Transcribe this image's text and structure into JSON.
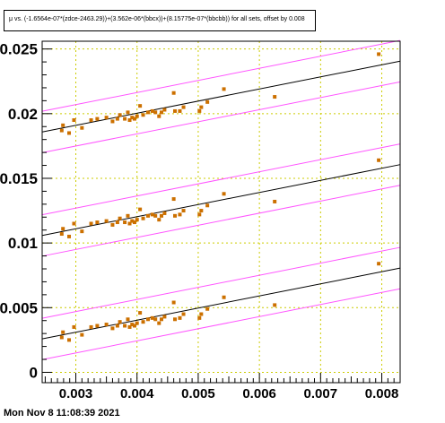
{
  "chart_data": {
    "type": "scatter",
    "title": "μ vs. (-1.6564e-07*(zdce-2463.29))+(3.562e-06*(bbcx))+(8.15775e-07*(bbcbb)) for all sets, offset by 0.008",
    "xlabel": "",
    "ylabel": "",
    "xlim": [
      0.00245,
      0.0083
    ],
    "ylim": [
      -0.0008,
      0.0256
    ],
    "x_ticks": [
      "0.003",
      "0.004",
      "0.005",
      "0.006",
      "0.007",
      "0.008"
    ],
    "x_tick_values": [
      0.003,
      0.004,
      0.005,
      0.006,
      0.007,
      0.008
    ],
    "y_ticks": [
      "0",
      "0.005",
      "0.01",
      "0.015",
      "0.02",
      "0.025"
    ],
    "y_tick_values": [
      0,
      0.005,
      0.01,
      0.015,
      0.02,
      0.025
    ],
    "grid": true,
    "offset": 0.008,
    "colors": {
      "points": "#cc7000",
      "fit": "#000000",
      "band": "#ff55ff",
      "grid": "#cccc00",
      "frame": "#000000"
    },
    "series": [
      {
        "offset_index": 0,
        "fit": {
          "slope": 0.936,
          "intercept": 0.00029
        },
        "band_halfwidth": 0.0016,
        "points": [
          [
            0.00277,
            0.0027
          ],
          [
            0.00279,
            0.0031
          ],
          [
            0.00289,
            0.0025
          ],
          [
            0.00297,
            0.0035
          ],
          [
            0.0031,
            0.0029
          ],
          [
            0.00325,
            0.0035
          ],
          [
            0.00335,
            0.0036
          ],
          [
            0.0035,
            0.0037
          ],
          [
            0.0036,
            0.0034
          ],
          [
            0.00368,
            0.0036
          ],
          [
            0.00372,
            0.0039
          ],
          [
            0.0038,
            0.0036
          ],
          [
            0.00385,
            0.0041
          ],
          [
            0.00388,
            0.0035
          ],
          [
            0.00392,
            0.0037
          ],
          [
            0.00396,
            0.0036
          ],
          [
            0.004,
            0.0038
          ],
          [
            0.00405,
            0.0046
          ],
          [
            0.0041,
            0.0039
          ],
          [
            0.00418,
            0.0041
          ],
          [
            0.00425,
            0.0042
          ],
          [
            0.0043,
            0.0041
          ],
          [
            0.00436,
            0.0038
          ],
          [
            0.0044,
            0.0041
          ],
          [
            0.00445,
            0.0043
          ],
          [
            0.0046,
            0.0054
          ],
          [
            0.00462,
            0.0041
          ],
          [
            0.0047,
            0.0042
          ],
          [
            0.00476,
            0.0045
          ],
          [
            0.00502,
            0.0042
          ],
          [
            0.00505,
            0.0045
          ],
          [
            0.00515,
            0.0049
          ],
          [
            0.00542,
            0.0058
          ],
          [
            0.00625,
            0.0052
          ],
          [
            0.00795,
            0.0084
          ]
        ]
      },
      {
        "offset_index": 1,
        "fit": {
          "slope": 0.936,
          "intercept": 0.00829
        },
        "band_halfwidth": 0.0016,
        "points": [
          [
            0.00277,
            0.0107
          ],
          [
            0.00279,
            0.0111
          ],
          [
            0.00289,
            0.0105
          ],
          [
            0.00297,
            0.0115
          ],
          [
            0.0031,
            0.0109
          ],
          [
            0.00325,
            0.0115
          ],
          [
            0.00335,
            0.0116
          ],
          [
            0.0035,
            0.0117
          ],
          [
            0.0036,
            0.0114
          ],
          [
            0.00368,
            0.0116
          ],
          [
            0.00372,
            0.0119
          ],
          [
            0.0038,
            0.0116
          ],
          [
            0.00385,
            0.0121
          ],
          [
            0.00388,
            0.0115
          ],
          [
            0.00392,
            0.0117
          ],
          [
            0.00396,
            0.0116
          ],
          [
            0.004,
            0.0118
          ],
          [
            0.00405,
            0.0126
          ],
          [
            0.0041,
            0.0119
          ],
          [
            0.00418,
            0.0121
          ],
          [
            0.00425,
            0.0122
          ],
          [
            0.0043,
            0.0121
          ],
          [
            0.00436,
            0.0118
          ],
          [
            0.0044,
            0.0121
          ],
          [
            0.00445,
            0.0123
          ],
          [
            0.0046,
            0.0134
          ],
          [
            0.00462,
            0.0121
          ],
          [
            0.0047,
            0.0122
          ],
          [
            0.00476,
            0.0125
          ],
          [
            0.00502,
            0.0122
          ],
          [
            0.00505,
            0.0125
          ],
          [
            0.00515,
            0.0129
          ],
          [
            0.00542,
            0.0138
          ],
          [
            0.00625,
            0.0132
          ],
          [
            0.00795,
            0.0164
          ]
        ]
      },
      {
        "offset_index": 2,
        "fit": {
          "slope": 0.936,
          "intercept": 0.01629
        },
        "band_halfwidth": 0.0016,
        "points": [
          [
            0.00277,
            0.0187
          ],
          [
            0.00279,
            0.0191
          ],
          [
            0.00289,
            0.0185
          ],
          [
            0.00297,
            0.0195
          ],
          [
            0.0031,
            0.0189
          ],
          [
            0.00325,
            0.0195
          ],
          [
            0.00335,
            0.0196
          ],
          [
            0.0035,
            0.0197
          ],
          [
            0.0036,
            0.0194
          ],
          [
            0.00368,
            0.0196
          ],
          [
            0.00372,
            0.0199
          ],
          [
            0.0038,
            0.0196
          ],
          [
            0.00385,
            0.0201
          ],
          [
            0.00388,
            0.0195
          ],
          [
            0.00392,
            0.0197
          ],
          [
            0.00396,
            0.0196
          ],
          [
            0.004,
            0.0198
          ],
          [
            0.00405,
            0.0206
          ],
          [
            0.0041,
            0.0199
          ],
          [
            0.00418,
            0.0201
          ],
          [
            0.00425,
            0.0202
          ],
          [
            0.0043,
            0.0201
          ],
          [
            0.00436,
            0.0198
          ],
          [
            0.0044,
            0.0201
          ],
          [
            0.00445,
            0.0203
          ],
          [
            0.0046,
            0.0216
          ],
          [
            0.00462,
            0.0202
          ],
          [
            0.0047,
            0.0202
          ],
          [
            0.00476,
            0.0205
          ],
          [
            0.00502,
            0.0202
          ],
          [
            0.00505,
            0.0205
          ],
          [
            0.00515,
            0.0209
          ],
          [
            0.00542,
            0.0219
          ],
          [
            0.00625,
            0.0213
          ],
          [
            0.00795,
            0.0246
          ]
        ]
      }
    ]
  },
  "footer": {
    "timestamp": "Mon Nov  8 11:08:39 2021"
  }
}
